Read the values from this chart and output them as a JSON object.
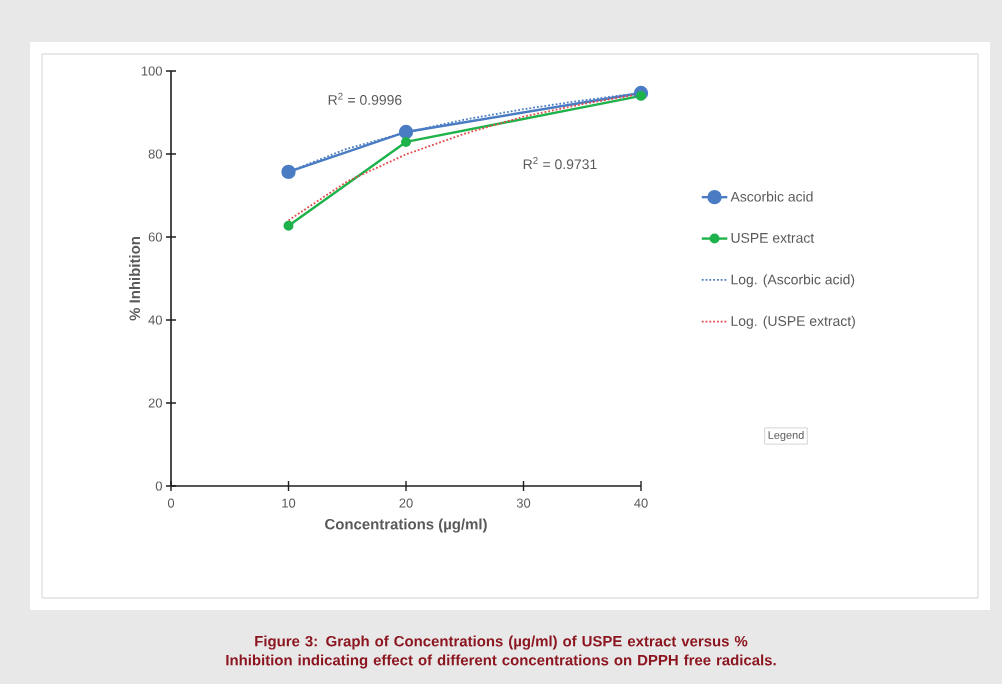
{
  "chart_data": {
    "type": "line",
    "xlabel": "Concentrations (µg/ml)",
    "ylabel": "% Inhibition",
    "xlim": [
      0,
      40
    ],
    "ylim": [
      0,
      100
    ],
    "xticks": [
      0,
      10,
      20,
      30,
      40
    ],
    "yticks": [
      0,
      20,
      40,
      60,
      80,
      100
    ],
    "grid": false,
    "legend": "right",
    "series": [
      {
        "name": "Ascorbic acid",
        "color": "#4a7cc4",
        "x": [
          10,
          20,
          40
        ],
        "values": [
          75.7,
          85.3,
          94.7
        ],
        "marker": "circle",
        "line_style": "solid"
      },
      {
        "name": "USPE extract",
        "color": "#1db24a",
        "x": [
          10,
          20,
          40
        ],
        "values": [
          62.7,
          82.9,
          94.0
        ],
        "marker": "circle",
        "line_style": "solid"
      },
      {
        "name": "Log. (Ascorbic acid)",
        "color": "#4a7cc4",
        "x": [
          10,
          15,
          20,
          25,
          30,
          35,
          40
        ],
        "values": [
          75.7,
          81.3,
          85.2,
          88.3,
          90.8,
          92.9,
          94.7
        ],
        "marker": "none",
        "line_style": "dotted"
      },
      {
        "name": "Log. (USPE extract)",
        "color": "#e04848",
        "x": [
          10,
          15,
          20,
          25,
          30,
          35,
          40
        ],
        "values": [
          64.0,
          73.4,
          79.9,
          84.9,
          89.0,
          92.0,
          94.5
        ],
        "marker": "none",
        "line_style": "dotted"
      }
    ],
    "annotations": [
      "R$^{2}$ = 0.9996",
      "R$^{2}$ = 0.9731",
      "Legend",
      "Figure 3: Graph of Concentrations (µg/ml) of USPE extract versus % Inhibition indicating effect of different concentrations on DPPH free radicals."
    ]
  }
}
